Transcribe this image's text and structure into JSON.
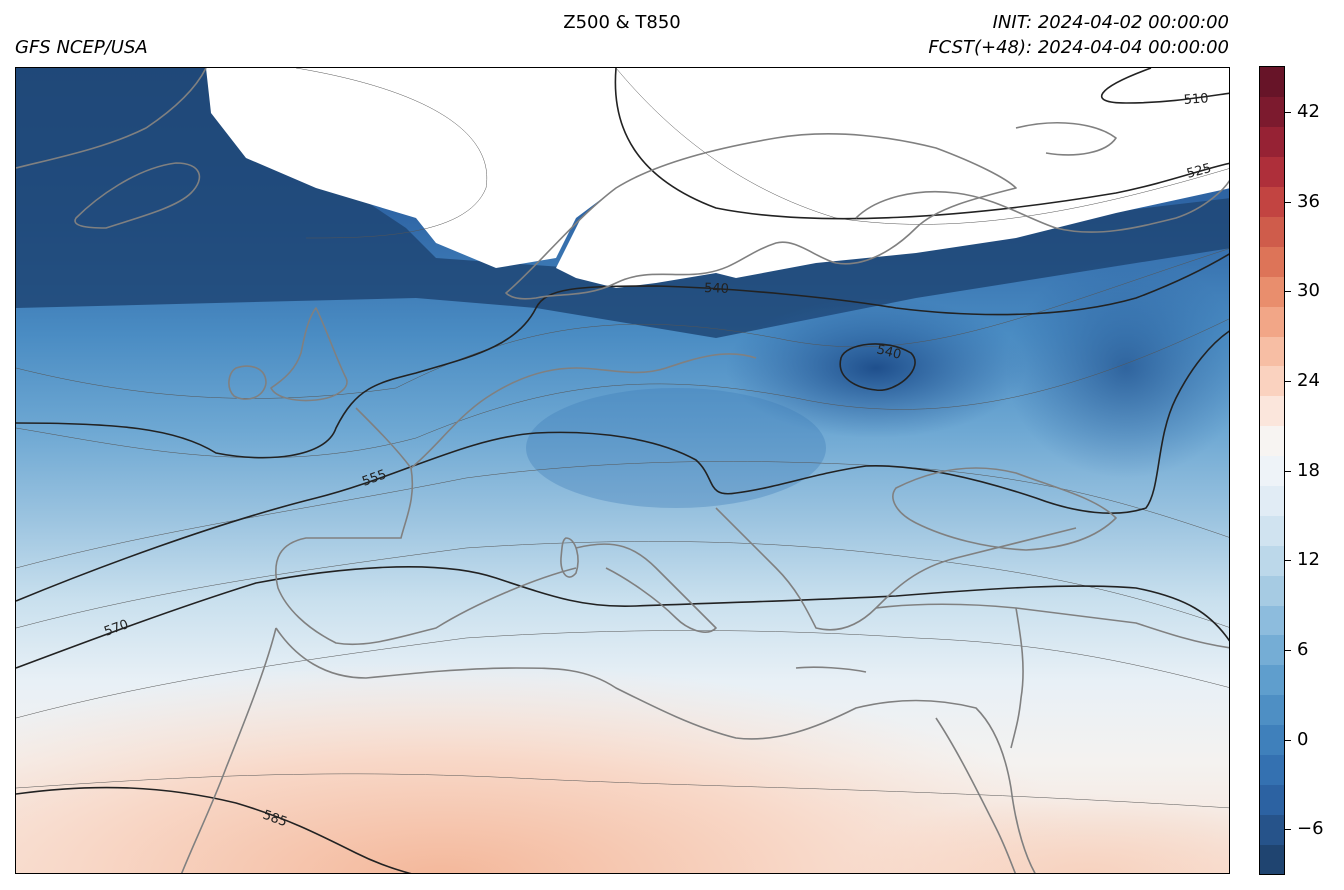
{
  "header": {
    "title": "Z500 & T850",
    "source": "GFS NCEP/USA",
    "init": "INIT: 2024-04-02 00:00:00",
    "forecast": "FCST(+48): 2024-04-04 00:00:00"
  },
  "map": {
    "projection": "regional Europe / North Africa",
    "fill_variable": "T850",
    "contour_variable": "Z500",
    "coastline_color": "#808080",
    "contour_color": "#222222",
    "contour_labels": [
      {
        "text": "510"
      },
      {
        "text": "525"
      },
      {
        "text": "540"
      },
      {
        "text": "540"
      },
      {
        "text": "555"
      },
      {
        "text": "570"
      },
      {
        "text": "585"
      }
    ]
  },
  "colorbar": {
    "colormap": "RdBu_r",
    "range": [
      -9,
      45
    ],
    "tick_values": [
      -6,
      0,
      6,
      12,
      18,
      24,
      30,
      36,
      42
    ],
    "tick_labels": [
      "−6",
      "0",
      "6",
      "12",
      "18",
      "24",
      "30",
      "36",
      "42"
    ],
    "colors": [
      "#1f4470",
      "#26538a",
      "#2c62a2",
      "#3471b1",
      "#3f80bb",
      "#4e8fc4",
      "#5f9ecd",
      "#75add5",
      "#8dbcdd",
      "#a6cbe3",
      "#bcd8ea",
      "#d0e3f0",
      "#e1ecf5",
      "#eef3f8",
      "#f7f4f2",
      "#fbe6dc",
      "#fad2bf",
      "#f7bea4",
      "#f2a687",
      "#e98e6d",
      "#dd7458",
      "#cf5c4b",
      "#c24441",
      "#ae2f3a",
      "#962234",
      "#7c1a2e",
      "#671428"
    ]
  }
}
